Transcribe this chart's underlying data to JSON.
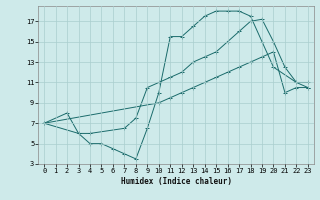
{
  "xlabel": "Humidex (Indice chaleur)",
  "background_color": "#ceeaea",
  "grid_color": "#aacece",
  "line_color": "#1a6b6b",
  "xlim": [
    -0.5,
    23.5
  ],
  "ylim": [
    3,
    18.5
  ],
  "xticks": [
    0,
    1,
    2,
    3,
    4,
    5,
    6,
    7,
    8,
    9,
    10,
    11,
    12,
    13,
    14,
    15,
    16,
    17,
    18,
    19,
    20,
    21,
    22,
    23
  ],
  "yticks": [
    3,
    5,
    7,
    9,
    11,
    13,
    15,
    17
  ],
  "curve1_x": [
    0,
    2,
    3,
    4,
    5,
    6,
    7,
    8,
    9,
    10,
    11,
    12,
    13,
    14,
    15,
    16,
    17,
    18,
    19,
    20,
    22,
    23
  ],
  "curve1_y": [
    7,
    8,
    6,
    5,
    5,
    4.5,
    4,
    3.5,
    6.5,
    10,
    15.5,
    15.5,
    16.5,
    17.5,
    18,
    18,
    18,
    17.5,
    15,
    12.5,
    11,
    11
  ],
  "curve2_x": [
    0,
    10,
    11,
    12,
    13,
    14,
    15,
    16,
    17,
    18,
    19,
    20,
    21,
    22,
    23
  ],
  "curve2_y": [
    7,
    9,
    9.5,
    10,
    10.5,
    11,
    11.5,
    12,
    12.5,
    13,
    13.5,
    14,
    10,
    10.5,
    10.5
  ],
  "curve3_x": [
    0,
    3,
    4,
    7,
    8,
    9,
    10,
    11,
    12,
    13,
    14,
    15,
    16,
    17,
    18,
    19,
    20,
    21,
    22,
    23
  ],
  "curve3_y": [
    7,
    6,
    6,
    6.5,
    7.5,
    10.5,
    11,
    11.5,
    12,
    13,
    13.5,
    14,
    15,
    16,
    17,
    17.2,
    15,
    12.5,
    11,
    10.5
  ]
}
